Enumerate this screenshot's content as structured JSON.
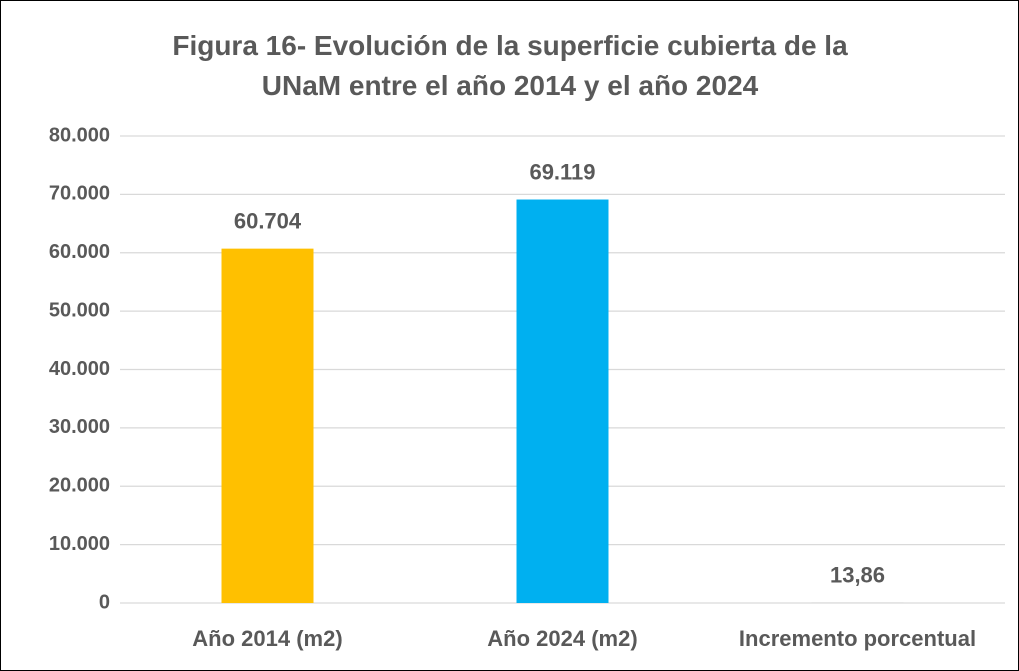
{
  "chart_data": {
    "type": "bar",
    "title": "Figura 16- Evolución de la superficie cubierta de la UNaM entre el año 2014 y el año 2024",
    "categories": [
      "Año 2014 (m2)",
      "Año 2024 (m2)",
      "Incremento porcentual"
    ],
    "values": [
      60704,
      69119,
      13.86
    ],
    "value_labels": [
      "60.704",
      "69.119",
      "13,86"
    ],
    "colors": [
      "#FFC000",
      "#00B0F0",
      "#A5A5A5"
    ],
    "ylim": [
      0,
      80000
    ],
    "yticks": [
      0,
      {
        "value": 10000,
        "label": "10.000"
      },
      {
        "value": 20000,
        "label": "20.000"
      },
      {
        "value": 30000,
        "label": "30.000"
      },
      {
        "value": 40000,
        "label": "40.000"
      },
      {
        "value": 50000,
        "label": "50.000"
      },
      {
        "value": 60000,
        "label": "60.000"
      },
      {
        "value": 70000,
        "label": "70.000"
      },
      {
        "value": 80000,
        "label": "80.000"
      }
    ],
    "grid": true
  }
}
